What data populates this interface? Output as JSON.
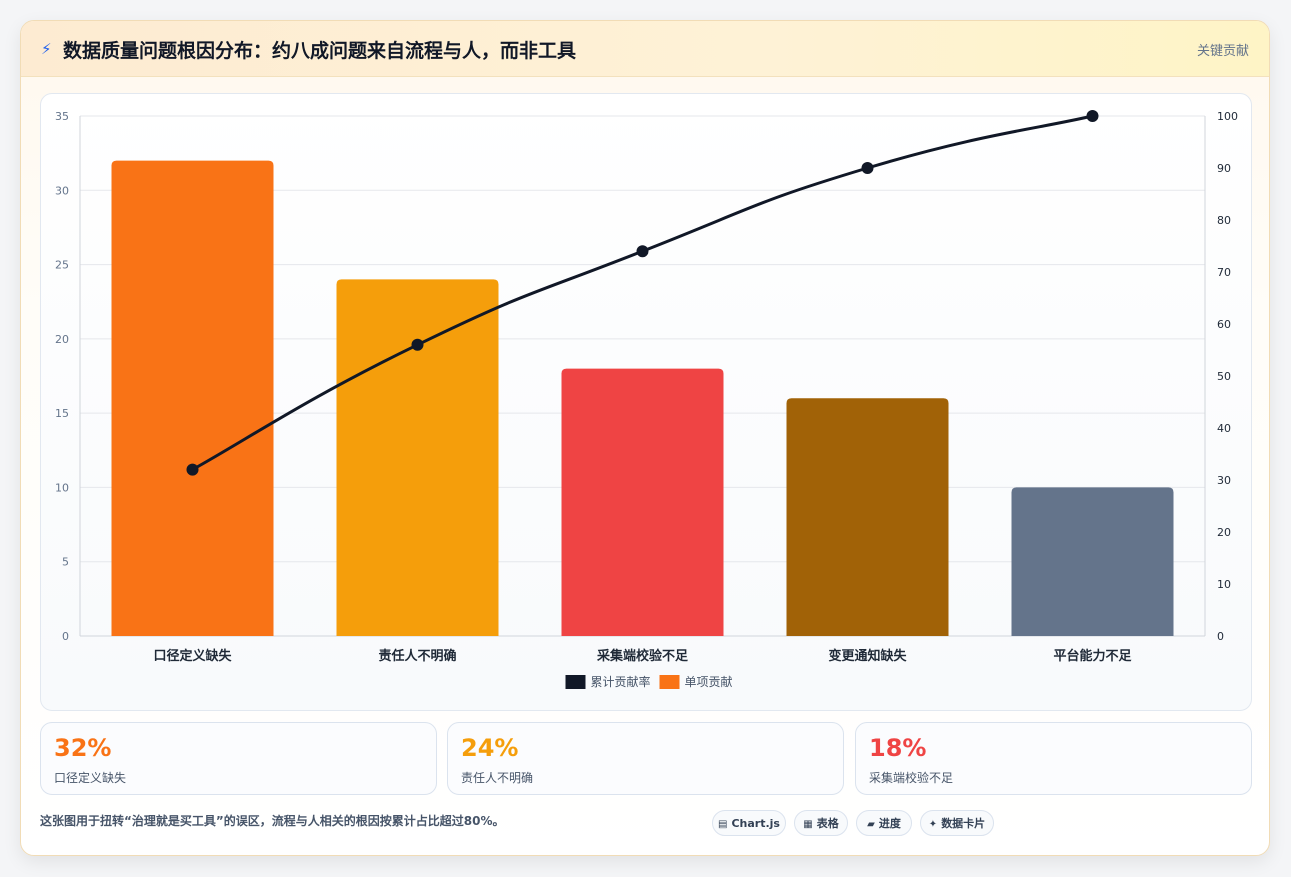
{
  "header": {
    "icon": "lightning-icon",
    "title": "数据质量问题根因分布：约八成问题来自流程与人，而非工具",
    "tag": "关键贡献"
  },
  "chart_data": {
    "type": "bar",
    "categories": [
      "口径定义缺失",
      "责任人不明确",
      "采集端校验不足",
      "变更通知缺失",
      "平台能力不足"
    ],
    "series": [
      {
        "name": "单项贡献",
        "type": "bar",
        "values": [
          32,
          24,
          18,
          16,
          10
        ],
        "colors": [
          "#f97316",
          "#f59e0b",
          "#ef4444",
          "#a16207",
          "#64748b"
        ],
        "axis": "left"
      },
      {
        "name": "累计贡献率",
        "type": "line",
        "values": [
          32,
          56,
          74,
          90,
          100
        ],
        "color": "#111827",
        "axis": "right"
      }
    ],
    "y_left": {
      "min": 0,
      "max": 35,
      "ticks": [
        "0",
        "5",
        "10",
        "15",
        "20",
        "25",
        "30",
        "35"
      ]
    },
    "y_right": {
      "min": 0,
      "max": 100,
      "ticks": [
        "0",
        "10",
        "20",
        "30",
        "40",
        "50",
        "60",
        "70",
        "80",
        "90",
        "100"
      ]
    },
    "grid": true,
    "legend_position": "bottom",
    "legend": [
      {
        "label": "累计贡献率",
        "color": "#111827"
      },
      {
        "label": "单项贡献",
        "color": "#f97316"
      }
    ]
  },
  "stats": [
    {
      "value": "32%",
      "label": "口径定义缺失",
      "color": "#f97316"
    },
    {
      "value": "24%",
      "label": "责任人不明确",
      "color": "#f59e0b"
    },
    {
      "value": "18%",
      "label": "采集端校验不足",
      "color": "#ef4444"
    }
  ],
  "footnote": "这张图用于扭转“治理就是买工具”的误区，流程与人相关的根因按累计占比超过80%。",
  "chips": [
    {
      "icon": "▤",
      "label": "Chart.js",
      "icon_name": "chart-icon"
    },
    {
      "icon": "▦",
      "label": "表格",
      "icon_name": "table-icon"
    },
    {
      "icon": "▰",
      "label": "进度",
      "icon_name": "progress-icon"
    },
    {
      "icon": "✦",
      "label": "数据卡片",
      "icon_name": "sparkle-icon"
    }
  ]
}
